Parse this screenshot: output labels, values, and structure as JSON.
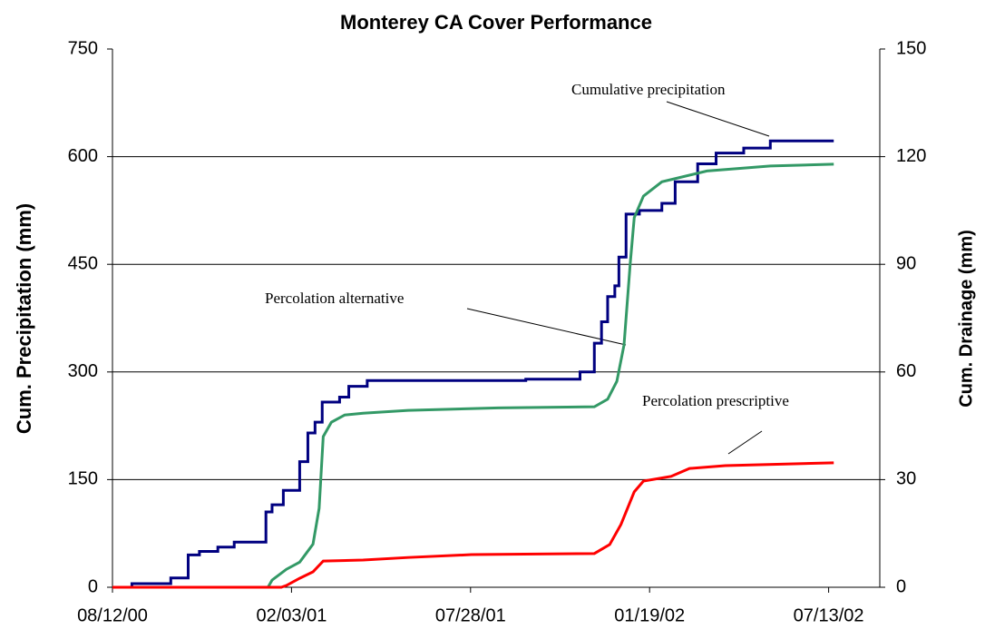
{
  "chart_data": {
    "type": "line",
    "title": "Monterey CA Cover Performance",
    "y_label": "Cum. Precipitation (mm)",
    "y2_label": "Cum. Drainage (mm)",
    "xlim": [
      "08/12/00",
      "09/01/02"
    ],
    "xticks": [
      "08/12/00",
      "02/03/01",
      "07/28/01",
      "01/19/02",
      "07/13/02"
    ],
    "ylim": [
      0,
      750
    ],
    "yticks": [
      0,
      150,
      300,
      450,
      600,
      750
    ],
    "y2lim": [
      0,
      150
    ],
    "y2ticks": [
      0,
      30,
      60,
      90,
      120,
      150
    ],
    "grid": true,
    "series": [
      {
        "name": "Cumulative precipitation",
        "color": "#000080",
        "axis": "y",
        "step": true,
        "x": [
          "08/12/00",
          "08/31/00",
          "10/08/00",
          "10/25/00",
          "11/05/00",
          "11/23/00",
          "12/09/00",
          "01/09/01",
          "01/15/01",
          "01/26/01",
          "02/11/01",
          "02/19/01",
          "02/26/01",
          "03/05/01",
          "03/22/01",
          "03/31/01",
          "04/18/01",
          "09/20/01",
          "11/12/01",
          "11/26/01",
          "12/03/01",
          "12/09/01",
          "12/16/01",
          "12/20/01",
          "12/27/01",
          "01/09/02",
          "01/31/02",
          "02/13/02",
          "03/07/02",
          "03/25/02",
          "04/21/02",
          "05/17/02",
          "07/18/02"
        ],
        "values": [
          0,
          5,
          13,
          45,
          50,
          56,
          63,
          105,
          115,
          135,
          175,
          215,
          230,
          258,
          265,
          280,
          288,
          290,
          300,
          340,
          370,
          405,
          420,
          460,
          520,
          525,
          535,
          565,
          590,
          605,
          612,
          622,
          622
        ]
      },
      {
        "name": "Percolation alternative",
        "color": "#339966",
        "axis": "y2",
        "step": false,
        "x": [
          "08/12/00",
          "01/11/01",
          "01/15/01",
          "01/29/01",
          "02/11/01",
          "02/24/01",
          "03/02/01",
          "03/06/01",
          "03/14/01",
          "03/27/01",
          "04/14/01",
          "05/28/01",
          "08/24/01",
          "11/26/01",
          "12/09/01",
          "12/18/01",
          "12/25/01",
          "12/31/01",
          "01/04/02",
          "01/13/02",
          "01/31/02",
          "03/16/02",
          "05/17/02",
          "07/18/02"
        ],
        "values": [
          0,
          0,
          2,
          5,
          7,
          12,
          22,
          42,
          46,
          48,
          48.5,
          49.3,
          50,
          50.3,
          52.4,
          57.4,
          67.5,
          90,
          103,
          109,
          113,
          116,
          117.4,
          117.9
        ]
      },
      {
        "name": "Percolation prescriptive",
        "color": "#ff0000",
        "axis": "y2",
        "step": false,
        "x": [
          "08/12/00",
          "01/24/01",
          "01/29/01",
          "02/11/01",
          "02/24/01",
          "03/06/01",
          "04/14/01",
          "05/28/01",
          "07/29/01",
          "11/26/01",
          "12/11/01",
          "12/22/01",
          "01/04/02",
          "01/13/02",
          "02/09/02",
          "02/27/02",
          "04/03/02",
          "07/18/02"
        ],
        "values": [
          0,
          0,
          0.5,
          2.5,
          4.3,
          7.3,
          7.6,
          8.3,
          9.1,
          9.4,
          11.9,
          17.5,
          26.6,
          29.6,
          30.9,
          33.1,
          33.9,
          34.7
        ]
      }
    ]
  }
}
